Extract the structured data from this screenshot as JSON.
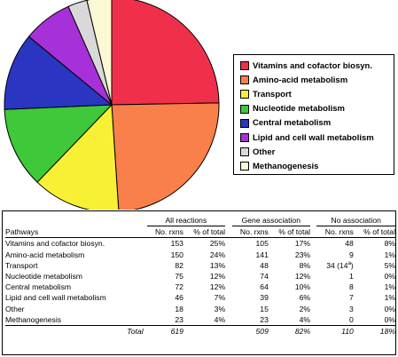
{
  "chart_data": {
    "type": "pie",
    "slices": [
      {
        "label": "Vitamins and cofactor biosyn.",
        "value": 153,
        "color": "#f0304a"
      },
      {
        "label": "Amino-acid metabolism",
        "value": 150,
        "color": "#f9804a"
      },
      {
        "label": "Transport",
        "value": 82,
        "color": "#f7f035"
      },
      {
        "label": "Nucleotide metabolism",
        "value": 75,
        "color": "#3ec83a"
      },
      {
        "label": "Central metabolism",
        "value": 72,
        "color": "#2a36c2"
      },
      {
        "label": "Lipid and cell wall metabolism",
        "value": 46,
        "color": "#a631d8"
      },
      {
        "label": "Other",
        "value": 18,
        "color": "#d9d9d9"
      },
      {
        "label": "Methanogenesis",
        "value": 23,
        "color": "#fbf8d4"
      }
    ],
    "legend_position": "right"
  },
  "table": {
    "groups": [
      "All reactions",
      "Gene association",
      "No association"
    ],
    "first_header": "Pathways",
    "sub_headers": [
      "No. rxns",
      "% of total",
      "No. rxns",
      "% of total",
      "No. rxns",
      "% of total"
    ],
    "rows": [
      {
        "name": "Vitamins and cofactor biosyn.",
        "cells": [
          "153",
          "25%",
          "105",
          "17%",
          "48",
          "8%"
        ]
      },
      {
        "name": "Amino-acid metabolism",
        "cells": [
          "150",
          "24%",
          "141",
          "23%",
          "9",
          "1%"
        ]
      },
      {
        "name": "Transport",
        "cells": [
          "82",
          "13%",
          "48",
          "8%",
          "34 (14",
          "5%"
        ],
        "note": "a",
        "note_after": ")"
      },
      {
        "name": "Nucleotide metabolism",
        "cells": [
          "75",
          "12%",
          "74",
          "12%",
          "1",
          "0%"
        ]
      },
      {
        "name": "Central metabolism",
        "cells": [
          "72",
          "12%",
          "64",
          "10%",
          "8",
          "1%"
        ]
      },
      {
        "name": "Lipid and cell wall metabolism",
        "cells": [
          "46",
          "7%",
          "39",
          "6%",
          "7",
          "1%"
        ]
      },
      {
        "name": "Other",
        "cells": [
          "18",
          "3%",
          "15",
          "2%",
          "3",
          "0%"
        ]
      },
      {
        "name": "Methanogenesis",
        "cells": [
          "23",
          "4%",
          "23",
          "4%",
          "0",
          "0%"
        ]
      }
    ],
    "total": {
      "name": "Total",
      "cells": [
        "619",
        "",
        "509",
        "82%",
        "110",
        "18%"
      ]
    }
  }
}
